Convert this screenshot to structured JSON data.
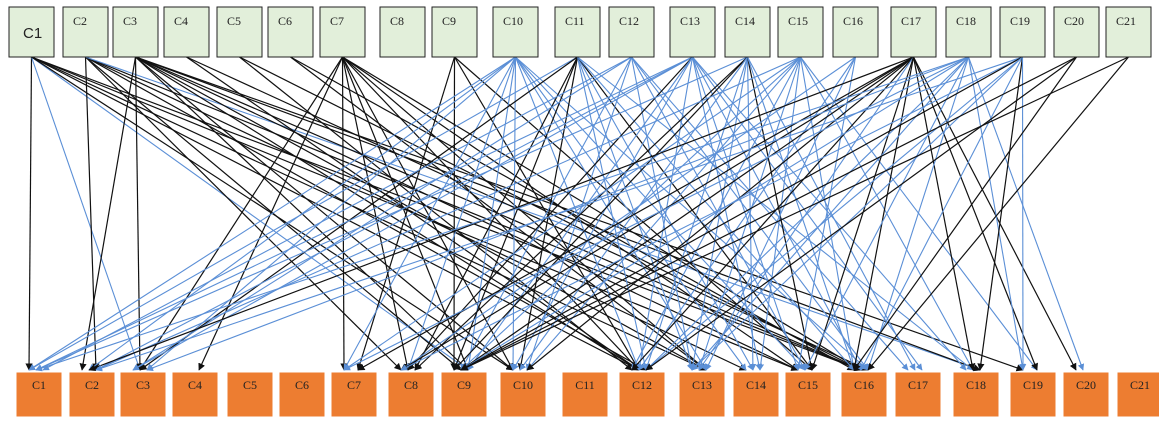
{
  "colors": {
    "top_fill": "#e2efda",
    "top_stroke": "#222222",
    "bottom_fill": "#ed7d31",
    "bottom_stroke": "#ffffff",
    "edge_black": "#111111",
    "edge_blue": "#5b8fd6"
  },
  "top_nodes": [
    "C1",
    "C2",
    "C3",
    "C4",
    "C5",
    "C6",
    "C7",
    "C8",
    "C9",
    "C10",
    "C11",
    "C12",
    "C13",
    "C14",
    "C15",
    "C16",
    "C17",
    "C18",
    "C19",
    "C20",
    "C21"
  ],
  "bottom_nodes": [
    "C1",
    "C2",
    "C3",
    "C4",
    "C5",
    "C6",
    "C7",
    "C8",
    "C9",
    "C10",
    "C11",
    "C12",
    "C13",
    "C14",
    "C15",
    "C16",
    "C17",
    "C18",
    "C19",
    "C20",
    "C21"
  ],
  "edges": [
    {
      "from": "C1",
      "to": "C1",
      "color": "black"
    },
    {
      "from": "C1",
      "to": "C3",
      "color": "blue"
    },
    {
      "from": "C1",
      "to": "C9",
      "color": "blue"
    },
    {
      "from": "C1",
      "to": "C10",
      "color": "black"
    },
    {
      "from": "C1",
      "to": "C12",
      "color": "black"
    },
    {
      "from": "C1",
      "to": "C13",
      "color": "black"
    },
    {
      "from": "C1",
      "to": "C15",
      "color": "black"
    },
    {
      "from": "C1",
      "to": "C16",
      "color": "black"
    },
    {
      "from": "C2",
      "to": "C2",
      "color": "black"
    },
    {
      "from": "C2",
      "to": "C8",
      "color": "black"
    },
    {
      "from": "C2",
      "to": "C9",
      "color": "black"
    },
    {
      "from": "C2",
      "to": "C12",
      "color": "black"
    },
    {
      "from": "C2",
      "to": "C14",
      "color": "black"
    },
    {
      "from": "C2",
      "to": "C16",
      "color": "black"
    },
    {
      "from": "C2",
      "to": "C18",
      "color": "blue"
    },
    {
      "from": "C3",
      "to": "C2",
      "color": "black"
    },
    {
      "from": "C3",
      "to": "C3",
      "color": "black"
    },
    {
      "from": "C3",
      "to": "C9",
      "color": "black"
    },
    {
      "from": "C3",
      "to": "C10",
      "color": "black"
    },
    {
      "from": "C3",
      "to": "C12",
      "color": "black"
    },
    {
      "from": "C3",
      "to": "C13",
      "color": "black"
    },
    {
      "from": "C3",
      "to": "C15",
      "color": "black"
    },
    {
      "from": "C3",
      "to": "C16",
      "color": "black"
    },
    {
      "from": "C3",
      "to": "C18",
      "color": "black"
    },
    {
      "from": "C3",
      "to": "C19",
      "color": "black"
    },
    {
      "from": "C4",
      "to": "C12",
      "color": "black"
    },
    {
      "from": "C4",
      "to": "C16",
      "color": "black"
    },
    {
      "from": "C5",
      "to": "C12",
      "color": "black"
    },
    {
      "from": "C5",
      "to": "C16",
      "color": "black"
    },
    {
      "from": "C6",
      "to": "C13",
      "color": "black"
    },
    {
      "from": "C6",
      "to": "C16",
      "color": "black"
    },
    {
      "from": "C7",
      "to": "C3",
      "color": "black"
    },
    {
      "from": "C7",
      "to": "C4",
      "color": "black"
    },
    {
      "from": "C7",
      "to": "C7",
      "color": "black"
    },
    {
      "from": "C7",
      "to": "C8",
      "color": "black"
    },
    {
      "from": "C7",
      "to": "C9",
      "color": "black"
    },
    {
      "from": "C7",
      "to": "C10",
      "color": "black"
    },
    {
      "from": "C7",
      "to": "C12",
      "color": "black"
    },
    {
      "from": "C7",
      "to": "C13",
      "color": "black"
    },
    {
      "from": "C7",
      "to": "C15",
      "color": "black"
    },
    {
      "from": "C7",
      "to": "C16",
      "color": "black"
    },
    {
      "from": "C9",
      "to": "C7",
      "color": "black"
    },
    {
      "from": "C9",
      "to": "C9",
      "color": "black"
    },
    {
      "from": "C9",
      "to": "C12",
      "color": "black"
    },
    {
      "from": "C9",
      "to": "C15",
      "color": "black"
    },
    {
      "from": "C10",
      "to": "C1",
      "color": "blue"
    },
    {
      "from": "C10",
      "to": "C2",
      "color": "blue"
    },
    {
      "from": "C10",
      "to": "C3",
      "color": "blue"
    },
    {
      "from": "C10",
      "to": "C7",
      "color": "blue"
    },
    {
      "from": "C10",
      "to": "C8",
      "color": "blue"
    },
    {
      "from": "C10",
      "to": "C9",
      "color": "blue"
    },
    {
      "from": "C10",
      "to": "C10",
      "color": "blue"
    },
    {
      "from": "C10",
      "to": "C12",
      "color": "blue"
    },
    {
      "from": "C10",
      "to": "C13",
      "color": "blue"
    },
    {
      "from": "C10",
      "to": "C14",
      "color": "blue"
    },
    {
      "from": "C10",
      "to": "C15",
      "color": "blue"
    },
    {
      "from": "C10",
      "to": "C16",
      "color": "blue"
    },
    {
      "from": "C11",
      "to": "C1",
      "color": "blue"
    },
    {
      "from": "C11",
      "to": "C3",
      "color": "black"
    },
    {
      "from": "C11",
      "to": "C8",
      "color": "black"
    },
    {
      "from": "C11",
      "to": "C9",
      "color": "black"
    },
    {
      "from": "C11",
      "to": "C10",
      "color": "black"
    },
    {
      "from": "C11",
      "to": "C12",
      "color": "blue"
    },
    {
      "from": "C11",
      "to": "C13",
      "color": "blue"
    },
    {
      "from": "C11",
      "to": "C14",
      "color": "blue"
    },
    {
      "from": "C11",
      "to": "C15",
      "color": "black"
    },
    {
      "from": "C11",
      "to": "C16",
      "color": "blue"
    },
    {
      "from": "C11",
      "to": "C18",
      "color": "blue"
    },
    {
      "from": "C12",
      "to": "C1",
      "color": "blue"
    },
    {
      "from": "C12",
      "to": "C3",
      "color": "blue"
    },
    {
      "from": "C12",
      "to": "C9",
      "color": "blue"
    },
    {
      "from": "C12",
      "to": "C10",
      "color": "blue"
    },
    {
      "from": "C12",
      "to": "C13",
      "color": "blue"
    },
    {
      "from": "C12",
      "to": "C15",
      "color": "blue"
    },
    {
      "from": "C12",
      "to": "C16",
      "color": "blue"
    },
    {
      "from": "C12",
      "to": "C17",
      "color": "blue"
    },
    {
      "from": "C13",
      "to": "C1",
      "color": "blue"
    },
    {
      "from": "C13",
      "to": "C2",
      "color": "blue"
    },
    {
      "from": "C13",
      "to": "C3",
      "color": "blue"
    },
    {
      "from": "C13",
      "to": "C8",
      "color": "black"
    },
    {
      "from": "C13",
      "to": "C9",
      "color": "blue"
    },
    {
      "from": "C13",
      "to": "C10",
      "color": "blue"
    },
    {
      "from": "C13",
      "to": "C12",
      "color": "blue"
    },
    {
      "from": "C13",
      "to": "C14",
      "color": "blue"
    },
    {
      "from": "C13",
      "to": "C15",
      "color": "blue"
    },
    {
      "from": "C13",
      "to": "C16",
      "color": "blue"
    },
    {
      "from": "C13",
      "to": "C17",
      "color": "blue"
    },
    {
      "from": "C13",
      "to": "C18",
      "color": "blue"
    },
    {
      "from": "C14",
      "to": "C1",
      "color": "blue"
    },
    {
      "from": "C14",
      "to": "C8",
      "color": "black"
    },
    {
      "from": "C14",
      "to": "C9",
      "color": "black"
    },
    {
      "from": "C14",
      "to": "C10",
      "color": "blue"
    },
    {
      "from": "C14",
      "to": "C12",
      "color": "blue"
    },
    {
      "from": "C14",
      "to": "C13",
      "color": "blue"
    },
    {
      "from": "C14",
      "to": "C14",
      "color": "blue"
    },
    {
      "from": "C14",
      "to": "C15",
      "color": "black"
    },
    {
      "from": "C14",
      "to": "C16",
      "color": "blue"
    },
    {
      "from": "C14",
      "to": "C17",
      "color": "blue"
    },
    {
      "from": "C15",
      "to": "C2",
      "color": "blue"
    },
    {
      "from": "C15",
      "to": "C7",
      "color": "blue"
    },
    {
      "from": "C15",
      "to": "C9",
      "color": "blue"
    },
    {
      "from": "C15",
      "to": "C10",
      "color": "blue"
    },
    {
      "from": "C15",
      "to": "C12",
      "color": "blue"
    },
    {
      "from": "C15",
      "to": "C13",
      "color": "blue"
    },
    {
      "from": "C15",
      "to": "C14",
      "color": "blue"
    },
    {
      "from": "C15",
      "to": "C16",
      "color": "blue"
    },
    {
      "from": "C15",
      "to": "C18",
      "color": "blue"
    },
    {
      "from": "C15",
      "to": "C19",
      "color": "blue"
    },
    {
      "from": "C16",
      "to": "C8",
      "color": "blue"
    },
    {
      "from": "C16",
      "to": "C12",
      "color": "blue"
    },
    {
      "from": "C16",
      "to": "C13",
      "color": "blue"
    },
    {
      "from": "C16",
      "to": "C15",
      "color": "blue"
    },
    {
      "from": "C17",
      "to": "C2",
      "color": "black"
    },
    {
      "from": "C17",
      "to": "C7",
      "color": "black"
    },
    {
      "from": "C17",
      "to": "C8",
      "color": "black"
    },
    {
      "from": "C17",
      "to": "C9",
      "color": "black"
    },
    {
      "from": "C17",
      "to": "C10",
      "color": "black"
    },
    {
      "from": "C17",
      "to": "C12",
      "color": "black"
    },
    {
      "from": "C17",
      "to": "C13",
      "color": "blue"
    },
    {
      "from": "C17",
      "to": "C15",
      "color": "black"
    },
    {
      "from": "C17",
      "to": "C16",
      "color": "black"
    },
    {
      "from": "C17",
      "to": "C18",
      "color": "black"
    },
    {
      "from": "C17",
      "to": "C19",
      "color": "black"
    },
    {
      "from": "C17",
      "to": "C20",
      "color": "black"
    },
    {
      "from": "C18",
      "to": "C1",
      "color": "blue"
    },
    {
      "from": "C18",
      "to": "C3",
      "color": "blue"
    },
    {
      "from": "C18",
      "to": "C7",
      "color": "blue"
    },
    {
      "from": "C18",
      "to": "C9",
      "color": "blue"
    },
    {
      "from": "C18",
      "to": "C12",
      "color": "blue"
    },
    {
      "from": "C18",
      "to": "C13",
      "color": "blue"
    },
    {
      "from": "C18",
      "to": "C15",
      "color": "blue"
    },
    {
      "from": "C18",
      "to": "C16",
      "color": "blue"
    },
    {
      "from": "C18",
      "to": "C19",
      "color": "blue"
    },
    {
      "from": "C18",
      "to": "C20",
      "color": "blue"
    },
    {
      "from": "C19",
      "to": "C2",
      "color": "blue"
    },
    {
      "from": "C19",
      "to": "C8",
      "color": "blue"
    },
    {
      "from": "C19",
      "to": "C9",
      "color": "black"
    },
    {
      "from": "C19",
      "to": "C12",
      "color": "blue"
    },
    {
      "from": "C19",
      "to": "C13",
      "color": "blue"
    },
    {
      "from": "C19",
      "to": "C16",
      "color": "blue"
    },
    {
      "from": "C19",
      "to": "C18",
      "color": "black"
    },
    {
      "from": "C19",
      "to": "C19",
      "color": "blue"
    },
    {
      "from": "C20",
      "to": "C9",
      "color": "black"
    },
    {
      "from": "C20",
      "to": "C12",
      "color": "black"
    },
    {
      "from": "C20",
      "to": "C16",
      "color": "black"
    },
    {
      "from": "C21",
      "to": "C9",
      "color": "black"
    },
    {
      "from": "C21",
      "to": "C16",
      "color": "black"
    }
  ]
}
